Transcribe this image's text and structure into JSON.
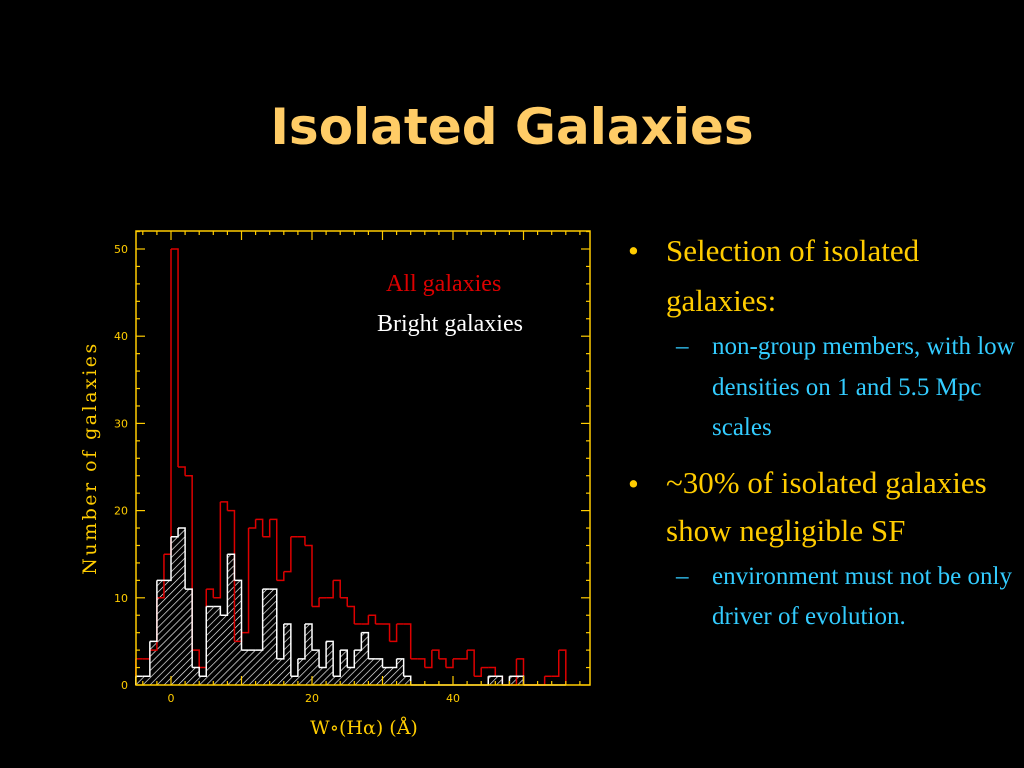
{
  "slide": {
    "title": "Isolated Galaxies",
    "bullets": [
      {
        "text": "Selection of  isolated galaxies:",
        "subs": [
          "non-group members, with low densities on 1 and 5.5 Mpc scales"
        ]
      },
      {
        "text": "~30% of isolated galaxies show negligible SF",
        "subs": [
          "environment must not be only driver of evolution."
        ]
      }
    ]
  },
  "chart_data": {
    "type": "bar",
    "histogram": true,
    "xlabel": "W∘(Hα)  (Å)",
    "ylabel": "Number of galaxies",
    "xlim": [
      -5,
      59
    ],
    "ylim": [
      0,
      52
    ],
    "xticks": [
      0,
      20,
      40
    ],
    "yticks": [
      0,
      10,
      20,
      30,
      40,
      50
    ],
    "bin_width": 1,
    "series": [
      {
        "name": "All galaxies",
        "color": "#DD0000",
        "bins": [
          [
            -5,
            3
          ],
          [
            -4,
            3
          ],
          [
            -3,
            4
          ],
          [
            -2,
            10
          ],
          [
            -1,
            15
          ],
          [
            0,
            50
          ],
          [
            1,
            25
          ],
          [
            2,
            24
          ],
          [
            3,
            4
          ],
          [
            4,
            2
          ],
          [
            5,
            11
          ],
          [
            6,
            10
          ],
          [
            7,
            21
          ],
          [
            8,
            20
          ],
          [
            9,
            5
          ],
          [
            10,
            6
          ],
          [
            11,
            18
          ],
          [
            12,
            19
          ],
          [
            13,
            17
          ],
          [
            14,
            19
          ],
          [
            15,
            12
          ],
          [
            16,
            13
          ],
          [
            17,
            17
          ],
          [
            18,
            17
          ],
          [
            19,
            16
          ],
          [
            20,
            9
          ],
          [
            21,
            10
          ],
          [
            22,
            10
          ],
          [
            23,
            12
          ],
          [
            24,
            10
          ],
          [
            25,
            9
          ],
          [
            26,
            7
          ],
          [
            27,
            7
          ],
          [
            28,
            8
          ],
          [
            29,
            7
          ],
          [
            30,
            7
          ],
          [
            31,
            5
          ],
          [
            32,
            7
          ],
          [
            33,
            7
          ],
          [
            34,
            3
          ],
          [
            35,
            3
          ],
          [
            36,
            2
          ],
          [
            37,
            4
          ],
          [
            38,
            3
          ],
          [
            39,
            2
          ],
          [
            40,
            3
          ],
          [
            41,
            3
          ],
          [
            42,
            4
          ],
          [
            43,
            1
          ],
          [
            44,
            2
          ],
          [
            45,
            2
          ],
          [
            46,
            1
          ],
          [
            47,
            0
          ],
          [
            48,
            0
          ],
          [
            49,
            3
          ],
          [
            50,
            0
          ],
          [
            51,
            0
          ],
          [
            52,
            0
          ],
          [
            53,
            1
          ],
          [
            54,
            1
          ],
          [
            55,
            4
          ]
        ]
      },
      {
        "name": "Bright galaxies",
        "color": "#FFFFFF",
        "bins": [
          [
            -5,
            1
          ],
          [
            -4,
            1
          ],
          [
            -3,
            5
          ],
          [
            -2,
            12
          ],
          [
            -1,
            12
          ],
          [
            0,
            17
          ],
          [
            1,
            18
          ],
          [
            2,
            11
          ],
          [
            3,
            2
          ],
          [
            4,
            1
          ],
          [
            5,
            9
          ],
          [
            6,
            9
          ],
          [
            7,
            8
          ],
          [
            8,
            15
          ],
          [
            9,
            12
          ],
          [
            10,
            4
          ],
          [
            11,
            4
          ],
          [
            12,
            4
          ],
          [
            13,
            11
          ],
          [
            14,
            11
          ],
          [
            15,
            3
          ],
          [
            16,
            7
          ],
          [
            17,
            1
          ],
          [
            18,
            3
          ],
          [
            19,
            7
          ],
          [
            20,
            4
          ],
          [
            21,
            2
          ],
          [
            22,
            5
          ],
          [
            23,
            1
          ],
          [
            24,
            4
          ],
          [
            25,
            2
          ],
          [
            26,
            4
          ],
          [
            27,
            6
          ],
          [
            28,
            3
          ],
          [
            29,
            3
          ],
          [
            30,
            2
          ],
          [
            31,
            2
          ],
          [
            32,
            3
          ],
          [
            33,
            1
          ],
          [
            34,
            0
          ],
          [
            35,
            0
          ],
          [
            36,
            0
          ],
          [
            37,
            0
          ],
          [
            38,
            0
          ],
          [
            39,
            0
          ],
          [
            40,
            0
          ],
          [
            41,
            0
          ],
          [
            42,
            0
          ],
          [
            43,
            0
          ],
          [
            44,
            0
          ],
          [
            45,
            1
          ],
          [
            46,
            1
          ],
          [
            47,
            0
          ],
          [
            48,
            1
          ],
          [
            49,
            1
          ],
          [
            50,
            0
          ],
          [
            51,
            0
          ],
          [
            52,
            0
          ],
          [
            53,
            0
          ],
          [
            54,
            0
          ],
          [
            55,
            0
          ]
        ]
      }
    ],
    "legend": [
      "All galaxies",
      "Bright galaxies"
    ],
    "colors": {
      "axes": "#FFCC00",
      "all": "#DD0000",
      "bright": "#FFFFFF"
    }
  }
}
